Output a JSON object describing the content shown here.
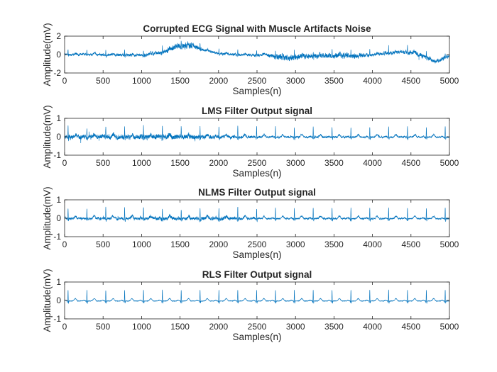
{
  "figure": {
    "line_color": "#0072bd",
    "axis_color": "#262626",
    "background": "#ffffff"
  },
  "chart_data": [
    {
      "type": "line",
      "title": "Corrupted ECG Signal with Muscle Artifacts Noise",
      "xlabel": "Samples(n)",
      "ylabel": "Amplitude(mV)",
      "xlim": [
        0,
        5000
      ],
      "ylim": [
        -2,
        2
      ],
      "xticks": [
        0,
        500,
        1000,
        1500,
        2000,
        2500,
        3000,
        3500,
        4000,
        4500,
        5000
      ],
      "yticks": [
        -2,
        0,
        2
      ],
      "signal": {
        "n_samples": 5000,
        "baseline": [
          [
            0,
            0
          ],
          [
            400,
            0
          ],
          [
            1000,
            -0.1
          ],
          [
            1300,
            0.3
          ],
          [
            1450,
            0.9
          ],
          [
            1650,
            1.0
          ],
          [
            1800,
            0.5
          ],
          [
            2000,
            0.1
          ],
          [
            2300,
            -0.05
          ],
          [
            2600,
            -0.05
          ],
          [
            2900,
            -0.35
          ],
          [
            3200,
            -0.15
          ],
          [
            3600,
            -0.1
          ],
          [
            3800,
            -0.2
          ],
          [
            4100,
            0.05
          ],
          [
            4300,
            0.25
          ],
          [
            4550,
            0.2
          ],
          [
            4700,
            -0.3
          ],
          [
            4800,
            -0.8
          ],
          [
            4900,
            -0.5
          ],
          [
            5000,
            -0.1
          ]
        ],
        "noise": [
          [
            0,
            0.12
          ],
          [
            1300,
            0.2
          ],
          [
            1600,
            0.4
          ],
          [
            1800,
            0.15
          ],
          [
            2600,
            0.15
          ],
          [
            2800,
            0.35
          ],
          [
            3100,
            0.3
          ],
          [
            3800,
            0.3
          ],
          [
            4000,
            0.15
          ],
          [
            4600,
            0.25
          ],
          [
            5000,
            0.2
          ]
        ],
        "beat_period": 245,
        "beat_phase": 290,
        "r_amp": 0.55
      }
    },
    {
      "type": "line",
      "title": "LMS Filter Output signal",
      "xlabel": "Samples(n)",
      "ylabel": "Amplitude(mV)",
      "xlim": [
        0,
        5000
      ],
      "ylim": [
        -1,
        1
      ],
      "xticks": [
        0,
        500,
        1000,
        1500,
        2000,
        2500,
        3000,
        3500,
        4000,
        4500,
        5000
      ],
      "yticks": [
        -1,
        0,
        1
      ],
      "signal": {
        "n_samples": 5000,
        "baseline": [
          [
            0,
            -0.02
          ],
          [
            5000,
            -0.02
          ]
        ],
        "noise": [
          [
            0,
            0.12
          ],
          [
            1300,
            0.14
          ],
          [
            1700,
            0.12
          ],
          [
            2600,
            0.06
          ],
          [
            3200,
            0.06
          ],
          [
            4200,
            0.05
          ],
          [
            5000,
            0.04
          ]
        ],
        "beat_period": 245,
        "beat_phase": 290,
        "r_amp": 0.58
      }
    },
    {
      "type": "line",
      "title": "NLMS Filter Output signal",
      "xlabel": "Samples(n)",
      "ylabel": "Amplitude(mV)",
      "xlim": [
        0,
        5000
      ],
      "ylim": [
        -1,
        1
      ],
      "xticks": [
        0,
        500,
        1000,
        1500,
        2000,
        2500,
        3000,
        3500,
        4000,
        4500,
        5000
      ],
      "yticks": [
        -1,
        0,
        1
      ],
      "signal": {
        "n_samples": 5000,
        "baseline": [
          [
            0,
            -0.02
          ],
          [
            5000,
            -0.02
          ]
        ],
        "noise": [
          [
            0,
            0.06
          ],
          [
            1300,
            0.1
          ],
          [
            2100,
            0.1
          ],
          [
            2700,
            0.04
          ],
          [
            3600,
            0.05
          ],
          [
            4300,
            0.04
          ],
          [
            5000,
            0.04
          ]
        ],
        "beat_period": 245,
        "beat_phase": 290,
        "r_amp": 0.6
      }
    },
    {
      "type": "line",
      "title": "RLS Filter Output signal",
      "xlabel": "Samples(n)",
      "ylabel": "Amplitude(mV)",
      "xlim": [
        0,
        5000
      ],
      "ylim": [
        -1,
        1
      ],
      "xticks": [
        0,
        500,
        1000,
        1500,
        2000,
        2500,
        3000,
        3500,
        4000,
        4500,
        5000
      ],
      "yticks": [
        -1,
        0,
        1
      ],
      "signal": {
        "n_samples": 5000,
        "baseline": [
          [
            0,
            -0.03
          ],
          [
            5000,
            -0.03
          ]
        ],
        "noise": [
          [
            0,
            0.015
          ],
          [
            5000,
            0.015
          ]
        ],
        "beat_period": 245,
        "beat_phase": 290,
        "r_amp": 0.62
      }
    }
  ]
}
